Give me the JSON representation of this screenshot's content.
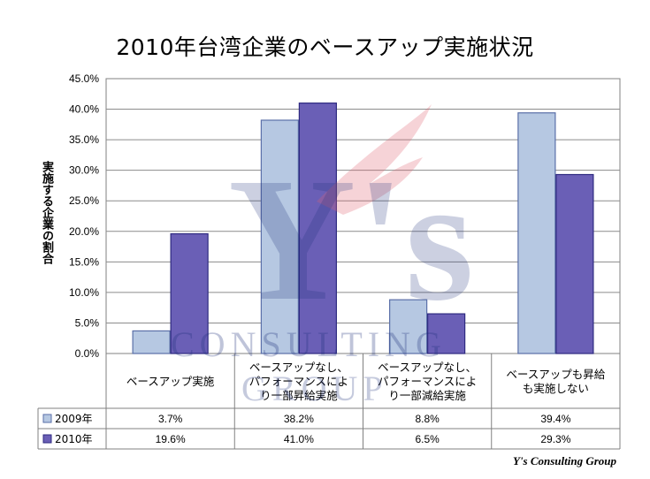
{
  "chart_data": {
    "type": "bar",
    "title": "2010年台湾企業のベースアップ実施状況",
    "ylabel": "実施する企業の割合",
    "ylim": [
      0,
      45
    ],
    "yticks": [
      "0.0%",
      "5.0%",
      "10.0%",
      "15.0%",
      "20.0%",
      "25.0%",
      "30.0%",
      "35.0%",
      "40.0%",
      "45.0%"
    ],
    "grid": true,
    "categories": [
      [
        "ベースアップ実施"
      ],
      [
        "ベースアップなし、",
        "パフォーマンスによ",
        "り一部昇給実施"
      ],
      [
        "ベースアップなし、",
        "パフォーマンスによ",
        "り一部減給実施"
      ],
      [
        "ベースアップも昇給",
        "も実施しない"
      ]
    ],
    "series": [
      {
        "name": "2009年",
        "color": "#b6c8e2",
        "values": [
          3.7,
          38.2,
          8.8,
          39.4
        ],
        "labels": [
          "3.7%",
          "38.2%",
          "8.8%",
          "39.4%"
        ]
      },
      {
        "name": "2010年",
        "color": "#6a5fb6",
        "values": [
          19.6,
          41.0,
          6.5,
          29.3
        ],
        "labels": [
          "19.6%",
          "41.0%",
          "6.5%",
          "29.3%"
        ]
      }
    ]
  },
  "watermark": {
    "letters": "Y's",
    "line1": "CONSULTING",
    "line2": "GROUP"
  },
  "footer": "Y's Consulting Group"
}
